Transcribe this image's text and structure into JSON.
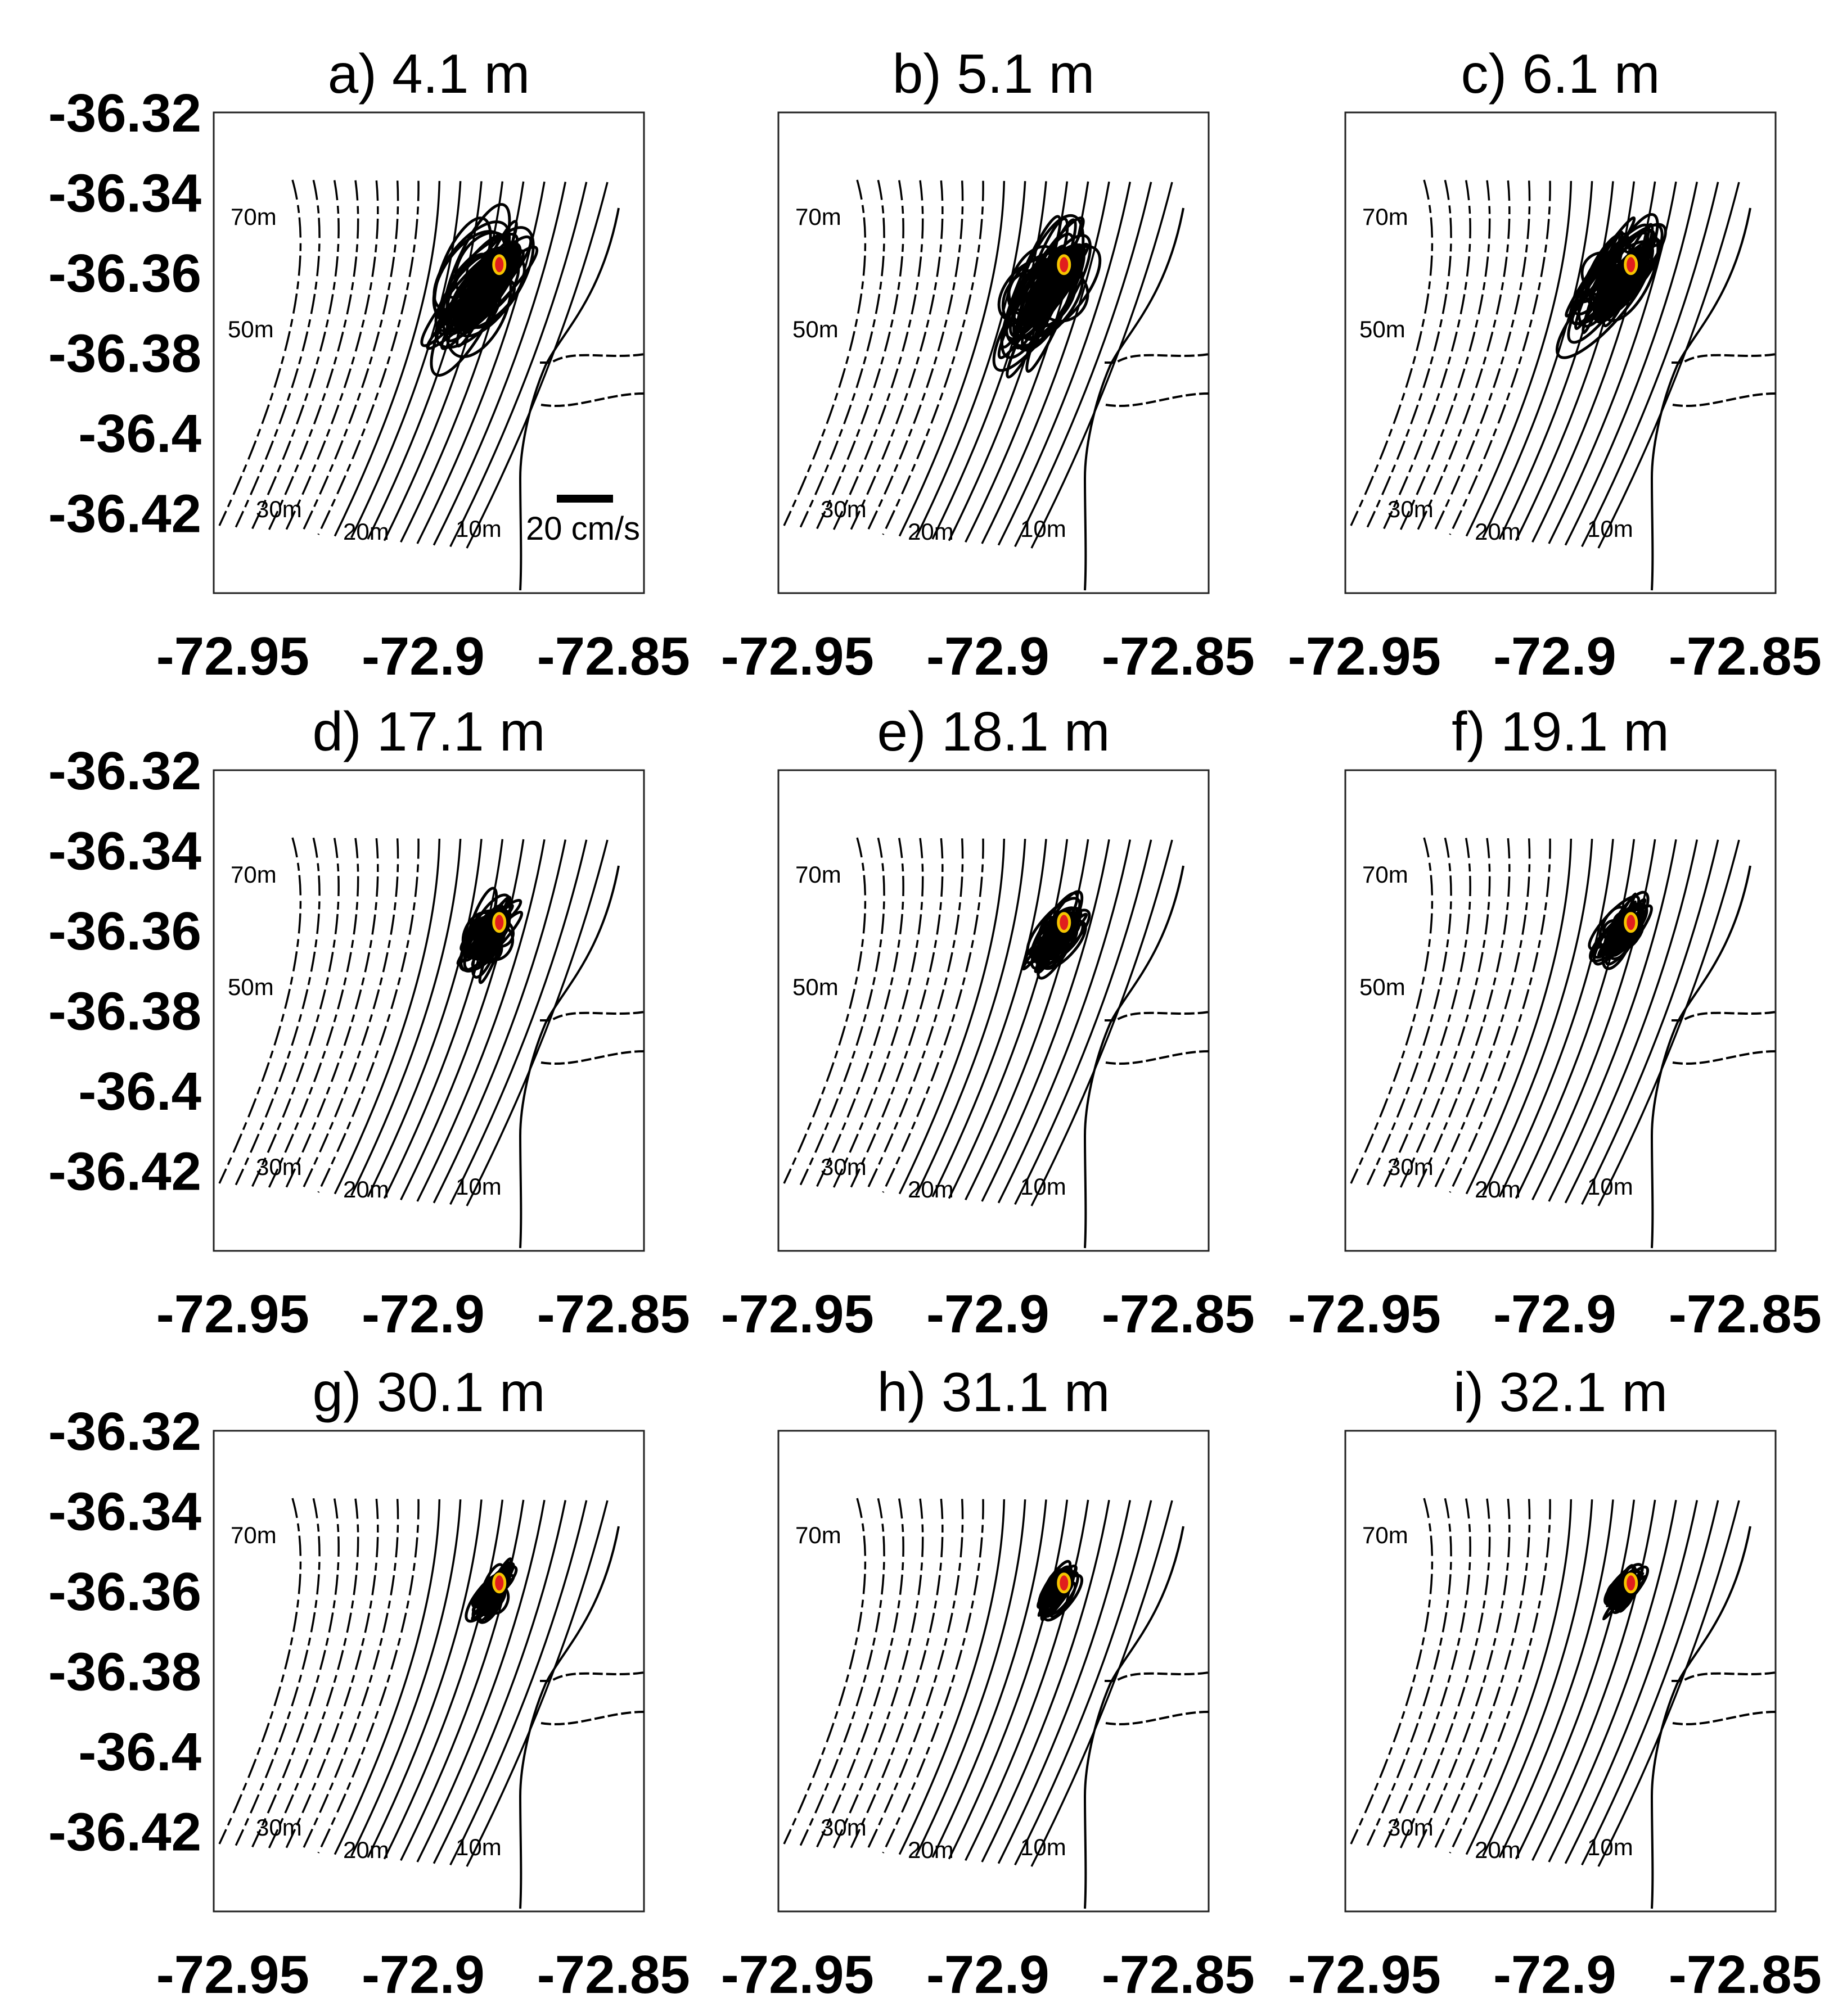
{
  "chart_data": {
    "type": "scatter",
    "description_units": {
      "x": "longitude",
      "y": "latitude"
    },
    "x_ticks": [
      -72.95,
      -72.9,
      -72.85
    ],
    "x_tick_labels": [
      "-72.95",
      "-72.9",
      "-72.85"
    ],
    "y_ticks": [
      -36.32,
      -36.34,
      -36.36,
      -36.38,
      -36.4,
      -36.42
    ],
    "y_tick_labels": [
      "-36.32",
      "-36.34",
      "-36.36",
      "-36.38",
      "-36.4",
      "-36.42"
    ],
    "xlim": [
      -72.955,
      -72.842
    ],
    "ylim": [
      -36.44,
      -36.32
    ],
    "station": {
      "lon": -72.88,
      "lat": -36.358,
      "fill": "#e11d1d",
      "outline": "#f5c400"
    },
    "isobaths": [
      "10m",
      "20m",
      "30m",
      "50m",
      "70m"
    ],
    "scale_bar_label": "20 cm/s",
    "panels": [
      {
        "id": "a",
        "title": "a) 4.1 m",
        "spread": 1.0,
        "show_50m": true,
        "show_scale": true
      },
      {
        "id": "b",
        "title": "b) 5.1 m",
        "spread": 0.95,
        "show_50m": true,
        "show_scale": false
      },
      {
        "id": "c",
        "title": "c) 6.1 m",
        "spread": 0.85,
        "show_50m": true,
        "show_scale": false
      },
      {
        "id": "d",
        "title": "d) 17.1 m",
        "spread": 0.55,
        "show_50m": true,
        "show_scale": false
      },
      {
        "id": "e",
        "title": "e) 18.1 m",
        "spread": 0.5,
        "show_50m": true,
        "show_scale": false
      },
      {
        "id": "f",
        "title": "f) 19.1 m",
        "spread": 0.48,
        "show_50m": true,
        "show_scale": false
      },
      {
        "id": "g",
        "title": "g) 30.1 m",
        "spread": 0.38,
        "show_50m": false,
        "show_scale": false
      },
      {
        "id": "h",
        "title": "h) 31.1 m",
        "spread": 0.36,
        "show_50m": false,
        "show_scale": false
      },
      {
        "id": "i",
        "title": "i) 32.1 m",
        "spread": 0.34,
        "show_50m": false,
        "show_scale": false
      }
    ]
  }
}
